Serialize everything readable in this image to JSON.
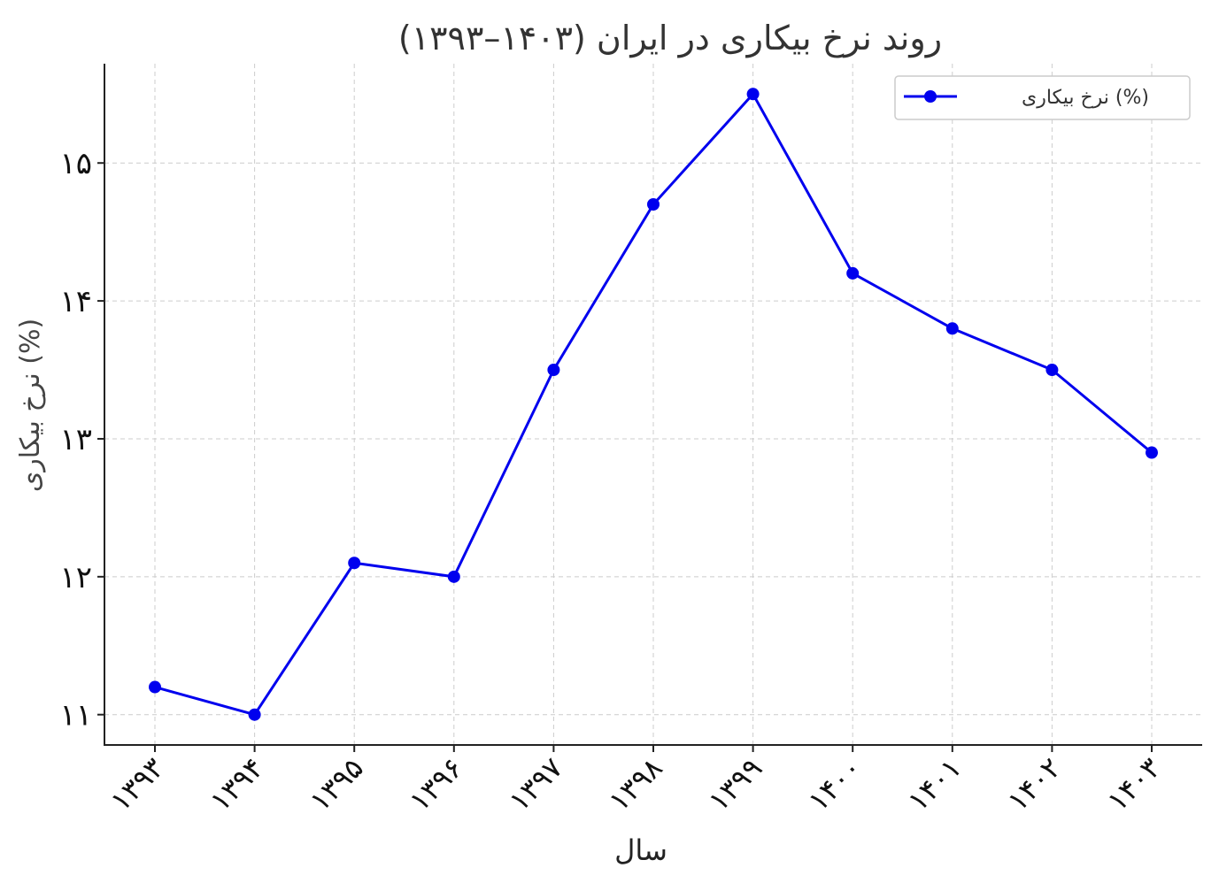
{
  "chart_data": {
    "type": "line",
    "title": "روند نرخ بیکاری در ایران (۱۴۰۳–۱۳۹۳)",
    "xlabel": "سال",
    "ylabel": "نرخ بیکاری (%)",
    "categories": [
      "۱۳۹۳",
      "۱۳۹۴",
      "۱۳۹۵",
      "۱۳۹۶",
      "۱۳۹۷",
      "۱۳۹۸",
      "۱۳۹۹",
      "۱۴۰۰",
      "۱۴۰۱",
      "۱۴۰۲",
      "۱۴۰۳"
    ],
    "series": [
      {
        "name": "نرخ بیکاری (%)",
        "color": "#0000ee",
        "values": [
          11.2,
          11.0,
          12.1,
          12.0,
          13.5,
          14.7,
          15.5,
          14.2,
          13.8,
          13.5,
          12.9
        ]
      }
    ],
    "yticks": [
      11,
      12,
      13,
      14,
      15
    ],
    "ytick_labels": [
      "۱۱",
      "۱۲",
      "۱۳",
      "۱۴",
      "۱۵"
    ],
    "ylim": [
      10.78,
      15.72
    ],
    "grid": true,
    "legend_position": "top-right"
  }
}
